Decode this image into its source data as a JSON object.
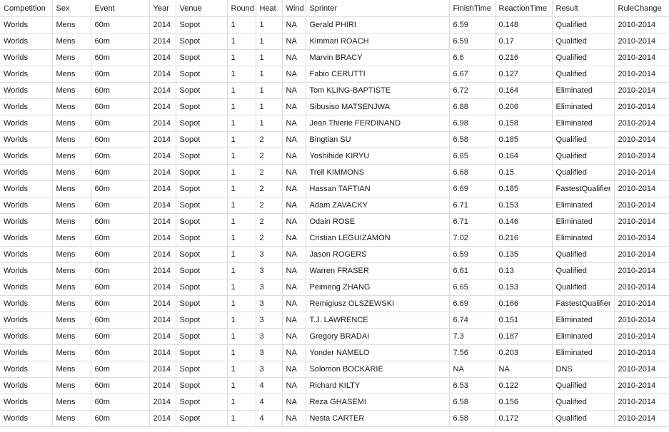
{
  "columns": [
    "Competition",
    "Sex",
    "Event",
    "Year",
    "Venue",
    "Round",
    "Heat",
    "Wind",
    "Sprinter",
    "FinishTime",
    "ReactionTime",
    "Result",
    "RuleChange"
  ],
  "rows": [
    [
      "Worlds",
      "Mens",
      "60m",
      "2014",
      "Sopot",
      "1",
      "1",
      "NA",
      "Gerald PHIRI",
      "6.59",
      "0.148",
      "Qualified",
      "2010-2014"
    ],
    [
      "Worlds",
      "Mens",
      "60m",
      "2014",
      "Sopot",
      "1",
      "1",
      "NA",
      "Kimmari ROACH",
      "6.59",
      "0.17",
      "Qualified",
      "2010-2014"
    ],
    [
      "Worlds",
      "Mens",
      "60m",
      "2014",
      "Sopot",
      "1",
      "1",
      "NA",
      "Marvin BRACY",
      "6.6",
      "0.216",
      "Qualified",
      "2010-2014"
    ],
    [
      "Worlds",
      "Mens",
      "60m",
      "2014",
      "Sopot",
      "1",
      "1",
      "NA",
      "Fabio CERUTTI",
      "6.67",
      "0.127",
      "Qualified",
      "2010-2014"
    ],
    [
      "Worlds",
      "Mens",
      "60m",
      "2014",
      "Sopot",
      "1",
      "1",
      "NA",
      "Tom KLING-BAPTISTE",
      "6.72",
      "0.164",
      "Eliminated",
      "2010-2014"
    ],
    [
      "Worlds",
      "Mens",
      "60m",
      "2014",
      "Sopot",
      "1",
      "1",
      "NA",
      "Sibusiso MATSENJWA",
      "6.88",
      "0.206",
      "Eliminated",
      "2010-2014"
    ],
    [
      "Worlds",
      "Mens",
      "60m",
      "2014",
      "Sopot",
      "1",
      "1",
      "NA",
      "Jean Thierie FERDINAND",
      "6.98",
      "0.158",
      "Eliminated",
      "2010-2014"
    ],
    [
      "Worlds",
      "Mens",
      "60m",
      "2014",
      "Sopot",
      "1",
      "2",
      "NA",
      "Bingtian SU",
      "6.58",
      "0.185",
      "Qualified",
      "2010-2014"
    ],
    [
      "Worlds",
      "Mens",
      "60m",
      "2014",
      "Sopot",
      "1",
      "2",
      "NA",
      "Yoshihide KIRYU",
      "6.65",
      "0.164",
      "Qualified",
      "2010-2014"
    ],
    [
      "Worlds",
      "Mens",
      "60m",
      "2014",
      "Sopot",
      "1",
      "2",
      "NA",
      "Trell KIMMONS",
      "6.68",
      "0.15",
      "Qualified",
      "2010-2014"
    ],
    [
      "Worlds",
      "Mens",
      "60m",
      "2014",
      "Sopot",
      "1",
      "2",
      "NA",
      "Hassan TAFTIAN",
      "6.69",
      "0.185",
      "FastestQualifier",
      "2010-2014"
    ],
    [
      "Worlds",
      "Mens",
      "60m",
      "2014",
      "Sopot",
      "1",
      "2",
      "NA",
      "Adam ZAVACKY",
      "6.71",
      "0.153",
      "Eliminated",
      "2010-2014"
    ],
    [
      "Worlds",
      "Mens",
      "60m",
      "2014",
      "Sopot",
      "1",
      "2",
      "NA",
      "Odain ROSE",
      "6.71",
      "0.146",
      "Eliminated",
      "2010-2014"
    ],
    [
      "Worlds",
      "Mens",
      "60m",
      "2014",
      "Sopot",
      "1",
      "2",
      "NA",
      "Cristian LEGUIZAMON",
      "7.02",
      "0.216",
      "Eliminated",
      "2010-2014"
    ],
    [
      "Worlds",
      "Mens",
      "60m",
      "2014",
      "Sopot",
      "1",
      "3",
      "NA",
      "Jason ROGERS",
      "6.59",
      "0.135",
      "Qualified",
      "2010-2014"
    ],
    [
      "Worlds",
      "Mens",
      "60m",
      "2014",
      "Sopot",
      "1",
      "3",
      "NA",
      "Warren FRASER",
      "6.61",
      "0.13",
      "Qualified",
      "2010-2014"
    ],
    [
      "Worlds",
      "Mens",
      "60m",
      "2014",
      "Sopot",
      "1",
      "3",
      "NA",
      "Peimeng ZHANG",
      "6.65",
      "0.153",
      "Qualified",
      "2010-2014"
    ],
    [
      "Worlds",
      "Mens",
      "60m",
      "2014",
      "Sopot",
      "1",
      "3",
      "NA",
      "Remigiusz OLSZEWSKI",
      "6.69",
      "0.166",
      "FastestQualifier",
      "2010-2014"
    ],
    [
      "Worlds",
      "Mens",
      "60m",
      "2014",
      "Sopot",
      "1",
      "3",
      "NA",
      "T.J. LAWRENCE",
      "6.74",
      "0.151",
      "Eliminated",
      "2010-2014"
    ],
    [
      "Worlds",
      "Mens",
      "60m",
      "2014",
      "Sopot",
      "1",
      "3",
      "NA",
      "Gregory BRADAI",
      "7.3",
      "0.187",
      "Eliminated",
      "2010-2014"
    ],
    [
      "Worlds",
      "Mens",
      "60m",
      "2014",
      "Sopot",
      "1",
      "3",
      "NA",
      "Yonder NAMELO",
      "7.56",
      "0.203",
      "Eliminated",
      "2010-2014"
    ],
    [
      "Worlds",
      "Mens",
      "60m",
      "2014",
      "Sopot",
      "1",
      "3",
      "NA",
      "Solomon BOCKARIE",
      "NA",
      "NA",
      "DNS",
      "2010-2014"
    ],
    [
      "Worlds",
      "Mens",
      "60m",
      "2014",
      "Sopot",
      "1",
      "4",
      "NA",
      "Richard KILTY",
      "6.53",
      "0.122",
      "Qualified",
      "2010-2014"
    ],
    [
      "Worlds",
      "Mens",
      "60m",
      "2014",
      "Sopot",
      "1",
      "4",
      "NA",
      "Reza GHASEMI",
      "6.58",
      "0.156",
      "Qualified",
      "2010-2014"
    ],
    [
      "Worlds",
      "Mens",
      "60m",
      "2014",
      "Sopot",
      "1",
      "4",
      "NA",
      "Nesta CARTER",
      "6.58",
      "0.172",
      "Qualified",
      "2010-2014"
    ]
  ],
  "chart_data": {
    "type": "table",
    "columns": [
      "Competition",
      "Sex",
      "Event",
      "Year",
      "Venue",
      "Round",
      "Heat",
      "Wind",
      "Sprinter",
      "FinishTime",
      "ReactionTime",
      "Result",
      "RuleChange"
    ],
    "row_count": 25
  }
}
